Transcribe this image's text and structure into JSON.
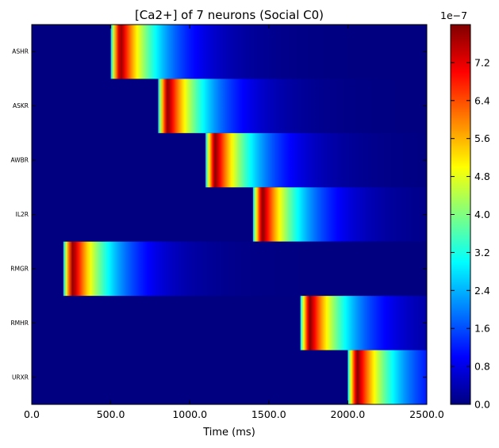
{
  "chart_data": {
    "type": "heatmap",
    "title": "[Ca2+] of 7 neurons (Social C0)",
    "xlabel": "Time (ms)",
    "ylabel": "",
    "xlim": [
      0,
      2500
    ],
    "x_ticks": [
      0,
      500,
      1000,
      1500,
      2000,
      2500
    ],
    "x_tick_labels": [
      "0.0",
      "500.0",
      "1000.0",
      "1500.0",
      "2000.0",
      "2500.0"
    ],
    "rows": [
      "ASHR",
      "ASKR",
      "AWBR",
      "IL2R",
      "RMGR",
      "RMHR",
      "URXR"
    ],
    "stimulus_onsets_ms": [
      500,
      800,
      1100,
      1400,
      200,
      1700,
      2000
    ],
    "peak_value": 8e-07,
    "peak_delay_ms": 60,
    "rise_time_ms": 20,
    "decay_time_ms": 230,
    "colorbar": {
      "colormap": "jet",
      "min": 0.0,
      "max": 8e-07,
      "offset_label": "1e−7",
      "ticks": [
        0.0,
        0.8,
        1.6,
        2.4,
        3.2,
        4.0,
        4.8,
        5.6,
        6.4,
        7.2
      ],
      "tick_labels": [
        "0.0",
        "0.8",
        "1.6",
        "2.4",
        "3.2",
        "4.0",
        "4.8",
        "5.6",
        "6.4",
        "7.2"
      ]
    }
  }
}
